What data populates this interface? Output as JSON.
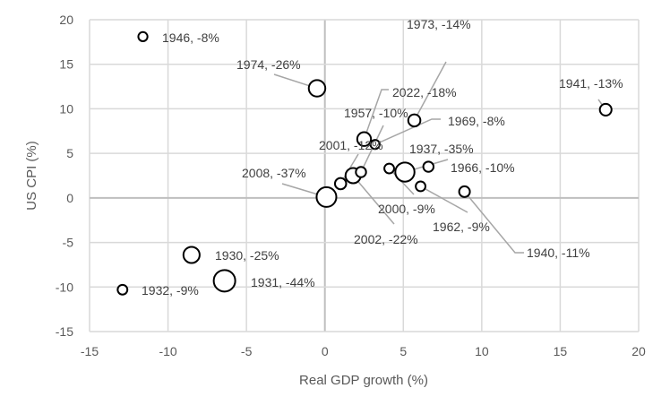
{
  "chart_data": {
    "type": "scatter",
    "subtype": "bubble",
    "title": "",
    "xlabel": "Real GDP growth (%)",
    "ylabel": "US CPI (%)",
    "xlim": [
      -15,
      20
    ],
    "ylim": [
      -15,
      20
    ],
    "xticks": [
      -15,
      -10,
      -5,
      0,
      5,
      10,
      15,
      20
    ],
    "yticks": [
      -15,
      -10,
      -5,
      0,
      5,
      10,
      15,
      20
    ],
    "grid": true,
    "legend": "none",
    "bubble_size_meaning": "equity market drawdown (%)",
    "points": [
      {
        "year": "1946",
        "label": "1946, -8%",
        "gdp": -11.6,
        "cpi": 18.1,
        "drawdown": -8
      },
      {
        "year": "1974",
        "label": "1974, -26%",
        "gdp": -0.5,
        "cpi": 12.3,
        "drawdown": -26
      },
      {
        "year": "1973",
        "label": "1973, -14%",
        "gdp": 5.7,
        "cpi": 8.7,
        "drawdown": -14
      },
      {
        "year": "1941",
        "label": "1941, -13%",
        "gdp": 17.9,
        "cpi": 9.9,
        "drawdown": -13
      },
      {
        "year": "2022",
        "label": "2022, -18%",
        "gdp": 2.5,
        "cpi": 6.6,
        "drawdown": -18
      },
      {
        "year": "1969",
        "label": "1969, -8%",
        "gdp": 3.2,
        "cpi": 6.0,
        "drawdown": -8
      },
      {
        "year": "1957",
        "label": "1957, -10%",
        "gdp": 2.3,
        "cpi": 2.9,
        "drawdown": -10
      },
      {
        "year": "2001",
        "label": "2001, -12%",
        "gdp": 1.0,
        "cpi": 1.6,
        "drawdown": -12
      },
      {
        "year": "2002",
        "label": "2002, -22%",
        "gdp": 1.8,
        "cpi": 2.5,
        "drawdown": -22
      },
      {
        "year": "2000",
        "label": "2000, -9%",
        "gdp": 4.1,
        "cpi": 3.3,
        "drawdown": -9
      },
      {
        "year": "1937",
        "label": "1937, -35%",
        "gdp": 5.1,
        "cpi": 2.9,
        "drawdown": -35
      },
      {
        "year": "1966",
        "label": "1966, -10%",
        "gdp": 6.6,
        "cpi": 3.5,
        "drawdown": -10
      },
      {
        "year": "1962",
        "label": "1962, -9%",
        "gdp": 6.1,
        "cpi": 1.3,
        "drawdown": -9
      },
      {
        "year": "1940",
        "label": "1940, -11%",
        "gdp": 8.9,
        "cpi": 0.7,
        "drawdown": -11
      },
      {
        "year": "2008",
        "label": "2008, -37%",
        "gdp": 0.1,
        "cpi": 0.1,
        "drawdown": -37
      },
      {
        "year": "1930",
        "label": "1930, -25%",
        "gdp": -8.5,
        "cpi": -6.4,
        "drawdown": -25
      },
      {
        "year": "1931",
        "label": "1931, -44%",
        "gdp": -6.4,
        "cpi": -9.3,
        "drawdown": -44
      },
      {
        "year": "1932",
        "label": "1932, -9%",
        "gdp": -12.9,
        "cpi": -10.3,
        "drawdown": -9
      }
    ]
  }
}
